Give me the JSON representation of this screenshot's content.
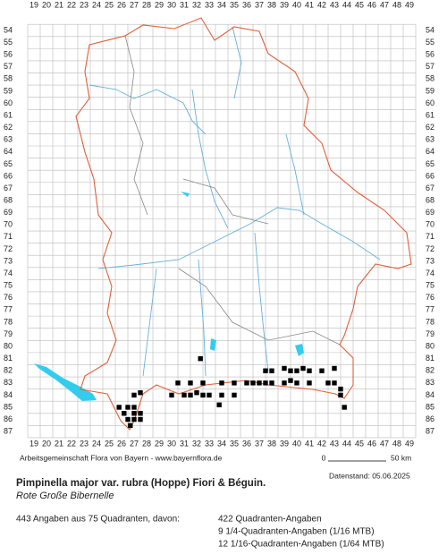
{
  "map": {
    "xticks": [
      19,
      20,
      21,
      22,
      23,
      24,
      25,
      26,
      27,
      28,
      29,
      30,
      31,
      32,
      33,
      34,
      35,
      36,
      37,
      38,
      39,
      40,
      41,
      42,
      43,
      44,
      45,
      46,
      47,
      48,
      49
    ],
    "yticks": [
      54,
      55,
      56,
      57,
      58,
      59,
      60,
      61,
      62,
      63,
      64,
      65,
      66,
      67,
      68,
      69,
      70,
      71,
      72,
      73,
      74,
      75,
      76,
      77,
      78,
      79,
      80,
      81,
      82,
      83,
      84,
      85,
      86,
      87
    ],
    "occurrences": [
      [
        32.3,
        81
      ],
      [
        37.5,
        82
      ],
      [
        38,
        82
      ],
      [
        39,
        81.8
      ],
      [
        39.5,
        82
      ],
      [
        40,
        82
      ],
      [
        40.5,
        81.8
      ],
      [
        41,
        82
      ],
      [
        42,
        82
      ],
      [
        43,
        81.8
      ],
      [
        30.5,
        83
      ],
      [
        31.5,
        83
      ],
      [
        32.5,
        83
      ],
      [
        34,
        83
      ],
      [
        35,
        83
      ],
      [
        36,
        83
      ],
      [
        36.5,
        83
      ],
      [
        37,
        83
      ],
      [
        37.5,
        83
      ],
      [
        38,
        83
      ],
      [
        39,
        83
      ],
      [
        39.5,
        82.8
      ],
      [
        40,
        83
      ],
      [
        41,
        83
      ],
      [
        42.5,
        83
      ],
      [
        43,
        83
      ],
      [
        43.5,
        83.5
      ],
      [
        27,
        84
      ],
      [
        27.5,
        83.8
      ],
      [
        30,
        84
      ],
      [
        31,
        84
      ],
      [
        31.5,
        84
      ],
      [
        32,
        83.8
      ],
      [
        32.5,
        84
      ],
      [
        33,
        84
      ],
      [
        34,
        84
      ],
      [
        35,
        84
      ],
      [
        43.5,
        84
      ],
      [
        25.8,
        85
      ],
      [
        26.5,
        85
      ],
      [
        27,
        85
      ],
      [
        33.8,
        84.8
      ],
      [
        43.8,
        85
      ],
      [
        26.2,
        85.5
      ],
      [
        27,
        85.5
      ],
      [
        27.5,
        85.5
      ],
      [
        26.5,
        86
      ],
      [
        27,
        86
      ],
      [
        27.5,
        86
      ],
      [
        26.7,
        86.5
      ]
    ],
    "credit": "Arbeitsgemeinschaft Flora von Bayern - www.bayernflora.de",
    "scale_start": "0",
    "scale_end": "50 km",
    "date": "Datenstand: 05.06.2025",
    "title": "Pimpinella major var. rubra (Hoppe) Fiori & Béguin.",
    "subtitle": "Rote Große Bibernelle",
    "summary": "443 Angaben aus 75 Quadranten, davon:",
    "stats": [
      "422 Quadranten-Angaben",
      "9 1/4-Quadranten-Angaben (1/16 MTB)",
      "12 1/16-Quadranten-Angaben (1/64 MTB)"
    ]
  }
}
